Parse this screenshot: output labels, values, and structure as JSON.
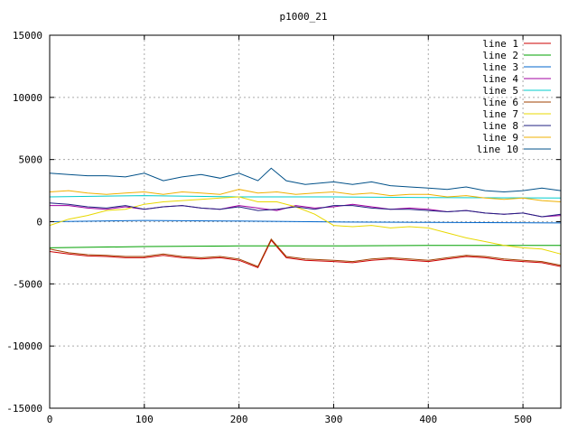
{
  "chart_data": {
    "type": "line",
    "title": "p1000_21",
    "xlabel": "",
    "ylabel": "",
    "xlim": [
      0,
      540
    ],
    "ylim": [
      -15000,
      15000
    ],
    "x_ticks": [
      "0",
      "100",
      "200",
      "300",
      "400",
      "500"
    ],
    "y_ticks": [
      "15000",
      "10000",
      "5000",
      "0",
      "-5000",
      "-10000",
      "-15000"
    ],
    "grid": true,
    "legend_position": "top-right",
    "series": [
      {
        "name": "line 1",
        "color": "#cc0000",
        "x": [
          0,
          20,
          40,
          60,
          80,
          100,
          120,
          140,
          160,
          180,
          200,
          220,
          234,
          250,
          270,
          300,
          320,
          340,
          360,
          380,
          400,
          420,
          440,
          460,
          480,
          500,
          520,
          540
        ],
        "values": [
          -2400,
          -2600,
          -2750,
          -2800,
          -2900,
          -2900,
          -2700,
          -2900,
          -3000,
          -2900,
          -3100,
          -3700,
          -1500,
          -2900,
          -3100,
          -3200,
          -3300,
          -3100,
          -3000,
          -3100,
          -3200,
          -3000,
          -2800,
          -2900,
          -3100,
          -3200,
          -3300,
          -3600
        ]
      },
      {
        "name": "line 2",
        "color": "#00a000",
        "x": [
          0,
          100,
          200,
          300,
          400,
          540
        ],
        "values": [
          -2100,
          -2000,
          -1950,
          -1950,
          -1900,
          -1900
        ]
      },
      {
        "name": "line 3",
        "color": "#0066cc",
        "x": [
          0,
          100,
          200,
          300,
          400,
          540
        ],
        "values": [
          0,
          100,
          50,
          -20,
          -50,
          -100
        ]
      },
      {
        "name": "line 4",
        "color": "#a000a0",
        "x": [
          0,
          20,
          40,
          60,
          80,
          100,
          120,
          140,
          160,
          180,
          200,
          220,
          240,
          260,
          280,
          300,
          320,
          340,
          360,
          380,
          400,
          420,
          440,
          460,
          480,
          500,
          520,
          540
        ],
        "values": [
          1300,
          1300,
          1100,
          1000,
          1200,
          1000,
          1200,
          1300,
          1100,
          1000,
          1300,
          1100,
          900,
          1300,
          1100,
          1200,
          1400,
          1200,
          1000,
          1100,
          1000,
          800,
          900,
          700,
          600,
          700,
          400,
          500
        ]
      },
      {
        "name": "line 5",
        "color": "#00cccc",
        "x": [
          0,
          100,
          200,
          300,
          400,
          540
        ],
        "values": [
          2000,
          2100,
          2000,
          2000,
          1950,
          1900
        ]
      },
      {
        "name": "line 6",
        "color": "#a04000",
        "x": [
          0,
          20,
          40,
          60,
          80,
          100,
          120,
          140,
          160,
          180,
          200,
          220,
          234,
          250,
          270,
          300,
          320,
          340,
          360,
          380,
          400,
          420,
          440,
          460,
          480,
          500,
          520,
          540
        ],
        "values": [
          -2200,
          -2500,
          -2650,
          -2700,
          -2800,
          -2800,
          -2600,
          -2800,
          -2900,
          -2800,
          -3000,
          -3600,
          -1400,
          -2800,
          -3000,
          -3100,
          -3200,
          -3000,
          -2900,
          -3000,
          -3100,
          -2900,
          -2700,
          -2800,
          -3000,
          -3100,
          -3200,
          -3500
        ]
      },
      {
        "name": "line 7",
        "color": "#e8d800",
        "x": [
          0,
          20,
          40,
          60,
          80,
          100,
          120,
          140,
          160,
          180,
          200,
          220,
          240,
          260,
          280,
          300,
          320,
          340,
          360,
          380,
          400,
          420,
          440,
          460,
          480,
          500,
          520,
          540
        ],
        "values": [
          -300,
          200,
          500,
          900,
          1000,
          1400,
          1600,
          1700,
          1800,
          1900,
          2000,
          1600,
          1600,
          1200,
          600,
          -300,
          -400,
          -300,
          -500,
          -400,
          -500,
          -900,
          -1300,
          -1600,
          -1900,
          -2100,
          -2200,
          -2600
        ]
      },
      {
        "name": "line 8",
        "color": "#202080",
        "x": [
          0,
          20,
          40,
          60,
          80,
          100,
          120,
          140,
          160,
          180,
          200,
          220,
          240,
          260,
          280,
          300,
          320,
          340,
          360,
          380,
          400,
          420,
          440,
          460,
          480,
          500,
          520,
          540
        ],
        "values": [
          1500,
          1400,
          1200,
          1100,
          1300,
          1000,
          1200,
          1300,
          1100,
          1000,
          1200,
          900,
          1000,
          1200,
          1000,
          1300,
          1300,
          1100,
          1000,
          1000,
          900,
          800,
          900,
          700,
          600,
          700,
          400,
          600
        ]
      },
      {
        "name": "line 9",
        "color": "#f0b000",
        "x": [
          0,
          20,
          40,
          60,
          80,
          100,
          120,
          140,
          160,
          180,
          200,
          220,
          240,
          260,
          280,
          300,
          320,
          340,
          360,
          380,
          400,
          420,
          440,
          460,
          480,
          500,
          520,
          540
        ],
        "values": [
          2400,
          2500,
          2300,
          2200,
          2300,
          2400,
          2200,
          2400,
          2300,
          2200,
          2600,
          2300,
          2400,
          2200,
          2300,
          2400,
          2200,
          2300,
          2100,
          2200,
          2200,
          2000,
          2100,
          1900,
          1800,
          1900,
          1700,
          1600
        ]
      },
      {
        "name": "line 10",
        "color": "#005088",
        "x": [
          0,
          20,
          40,
          60,
          80,
          100,
          120,
          140,
          160,
          180,
          200,
          220,
          234,
          250,
          270,
          300,
          320,
          340,
          360,
          380,
          400,
          420,
          440,
          460,
          480,
          500,
          520,
          540
        ],
        "values": [
          3900,
          3800,
          3700,
          3700,
          3600,
          3900,
          3300,
          3600,
          3800,
          3500,
          3900,
          3300,
          4300,
          3300,
          3000,
          3200,
          3000,
          3200,
          2900,
          2800,
          2700,
          2600,
          2800,
          2500,
          2400,
          2500,
          2700,
          2500
        ]
      }
    ]
  }
}
